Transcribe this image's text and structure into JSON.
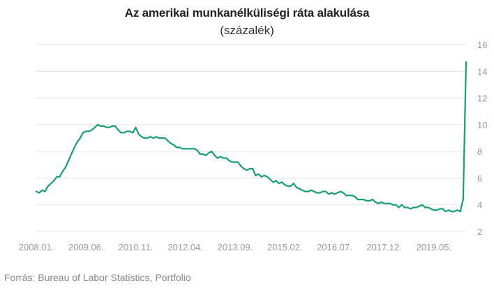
{
  "title": "Az amerikai munkanélküliségi ráta alakulása",
  "subtitle": "(százalék)",
  "source": "Forrás: Bureau of Labor Statistics, Portfolio",
  "colors": {
    "line": "#1a9e72",
    "grid": "#e3e3e3",
    "tick": "#999999"
  },
  "chart_data": {
    "type": "line",
    "title": "Az amerikai munkanélküliségi ráta alakulása",
    "subtitle": "(százalék)",
    "xlabel": "",
    "ylabel": "",
    "ylim": [
      2,
      16
    ],
    "yticks": [
      2,
      4,
      6,
      8,
      10,
      12,
      14,
      16
    ],
    "y_axis_side": "right",
    "grid": "horizontal",
    "x_ticks": [
      "2008.01.",
      "2009.06.",
      "2010.11.",
      "2012.04.",
      "2013.09.",
      "2015.02.",
      "2016.07.",
      "2017.12.",
      "2019.05."
    ],
    "x": [
      "2008.01",
      "2008.02",
      "2008.03",
      "2008.04",
      "2008.05",
      "2008.06",
      "2008.07",
      "2008.08",
      "2008.09",
      "2008.10",
      "2008.11",
      "2008.12",
      "2009.01",
      "2009.02",
      "2009.03",
      "2009.04",
      "2009.05",
      "2009.06",
      "2009.07",
      "2009.08",
      "2009.09",
      "2009.10",
      "2009.11",
      "2009.12",
      "2010.01",
      "2010.02",
      "2010.03",
      "2010.04",
      "2010.05",
      "2010.06",
      "2010.07",
      "2010.08",
      "2010.09",
      "2010.10",
      "2010.11",
      "2010.12",
      "2011.01",
      "2011.02",
      "2011.03",
      "2011.04",
      "2011.05",
      "2011.06",
      "2011.07",
      "2011.08",
      "2011.09",
      "2011.10",
      "2011.11",
      "2011.12",
      "2012.01",
      "2012.02",
      "2012.03",
      "2012.04",
      "2012.05",
      "2012.06",
      "2012.07",
      "2012.08",
      "2012.09",
      "2012.10",
      "2012.11",
      "2012.12",
      "2013.01",
      "2013.02",
      "2013.03",
      "2013.04",
      "2013.05",
      "2013.06",
      "2013.07",
      "2013.08",
      "2013.09",
      "2013.10",
      "2013.11",
      "2013.12",
      "2014.01",
      "2014.02",
      "2014.03",
      "2014.04",
      "2014.05",
      "2014.06",
      "2014.07",
      "2014.08",
      "2014.09",
      "2014.10",
      "2014.11",
      "2014.12",
      "2015.01",
      "2015.02",
      "2015.03",
      "2015.04",
      "2015.05",
      "2015.06",
      "2015.07",
      "2015.08",
      "2015.09",
      "2015.10",
      "2015.11",
      "2015.12",
      "2016.01",
      "2016.02",
      "2016.03",
      "2016.04",
      "2016.05",
      "2016.06",
      "2016.07",
      "2016.08",
      "2016.09",
      "2016.10",
      "2016.11",
      "2016.12",
      "2017.01",
      "2017.02",
      "2017.03",
      "2017.04",
      "2017.05",
      "2017.06",
      "2017.07",
      "2017.08",
      "2017.09",
      "2017.10",
      "2017.11",
      "2017.12",
      "2018.01",
      "2018.02",
      "2018.03",
      "2018.04",
      "2018.05",
      "2018.06",
      "2018.07",
      "2018.08",
      "2018.09",
      "2018.10",
      "2018.11",
      "2018.12",
      "2019.01",
      "2019.02",
      "2019.03",
      "2019.04",
      "2019.05",
      "2019.06",
      "2019.07",
      "2019.08",
      "2019.09",
      "2019.10",
      "2019.11",
      "2019.12",
      "2020.01",
      "2020.02",
      "2020.03",
      "2020.04"
    ],
    "series": [
      {
        "values": [
          5.0,
          4.9,
          5.1,
          5.0,
          5.4,
          5.6,
          5.8,
          6.1,
          6.1,
          6.5,
          6.8,
          7.3,
          7.8,
          8.3,
          8.7,
          9.0,
          9.4,
          9.5,
          9.5,
          9.6,
          9.8,
          10.0,
          9.9,
          9.9,
          9.8,
          9.8,
          9.9,
          9.9,
          9.6,
          9.4,
          9.4,
          9.5,
          9.5,
          9.4,
          9.8,
          9.3,
          9.1,
          9.0,
          9.0,
          9.1,
          9.0,
          9.1,
          9.0,
          9.0,
          9.0,
          8.8,
          8.6,
          8.5,
          8.3,
          8.3,
          8.2,
          8.2,
          8.2,
          8.2,
          8.2,
          8.1,
          7.8,
          7.8,
          7.7,
          7.9,
          8.0,
          7.7,
          7.5,
          7.6,
          7.5,
          7.5,
          7.3,
          7.2,
          7.2,
          7.2,
          6.9,
          6.7,
          6.6,
          6.7,
          6.7,
          6.2,
          6.3,
          6.1,
          6.2,
          6.1,
          5.9,
          5.7,
          5.8,
          5.6,
          5.7,
          5.5,
          5.4,
          5.4,
          5.6,
          5.3,
          5.2,
          5.1,
          5.0,
          5.0,
          5.1,
          5.0,
          4.9,
          4.9,
          5.0,
          5.0,
          4.8,
          4.9,
          4.8,
          4.9,
          5.0,
          4.9,
          4.7,
          4.7,
          4.7,
          4.6,
          4.4,
          4.4,
          4.4,
          4.3,
          4.3,
          4.4,
          4.2,
          4.1,
          4.2,
          4.1,
          4.1,
          4.1,
          4.0,
          4.0,
          3.8,
          4.0,
          3.8,
          3.8,
          3.7,
          3.8,
          3.8,
          3.9,
          4.0,
          3.8,
          3.8,
          3.7,
          3.6,
          3.6,
          3.7,
          3.7,
          3.5,
          3.6,
          3.5,
          3.5,
          3.6,
          3.5,
          4.4,
          14.7
        ]
      }
    ]
  }
}
